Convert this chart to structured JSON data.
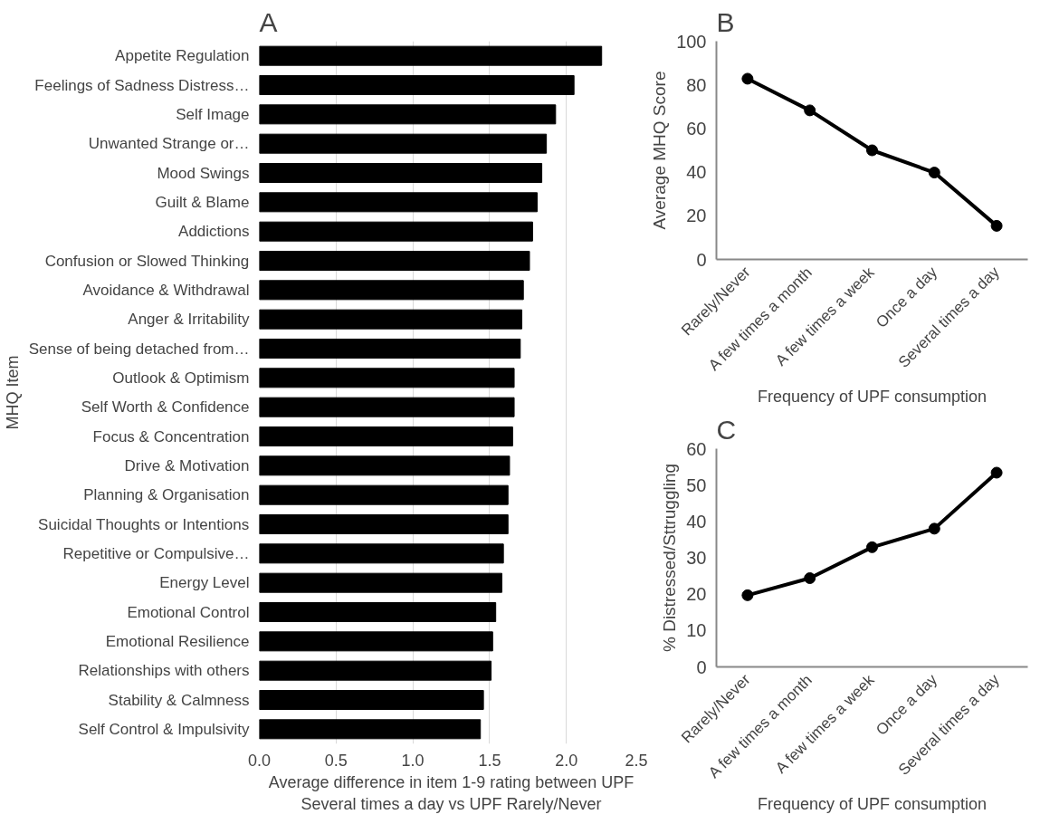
{
  "chart_data": [
    {
      "type": "bar",
      "title": "A",
      "orientation": "horizontal",
      "ylabel": "MHQ Item",
      "xlabel": "Average difference in item 1-9 rating between UPF\nSeveral times a day vs UPF Rarely/Never",
      "categories": [
        "Appetite Regulation",
        "Feelings of Sadness Distress…",
        "Self Image",
        "Unwanted Strange or…",
        "Mood Swings",
        "Guilt & Blame",
        "Addictions",
        "Confusion or Slowed Thinking",
        "Avoidance & Withdrawal",
        "Anger & Irritability",
        "Sense of being detached from…",
        "Outlook & Optimism",
        "Self Worth & Confidence",
        "Focus & Concentration",
        "Drive & Motivation",
        "Planning & Organisation",
        "Suicidal Thoughts or Intentions",
        "Repetitive or Compulsive…",
        "Energy Level",
        "Emotional Control",
        "Emotional Resilience",
        "Relationships with others",
        "Stability & Calmness",
        "Self Control & Impulsivity"
      ],
      "values": [
        2.23,
        2.05,
        1.93,
        1.87,
        1.84,
        1.81,
        1.78,
        1.76,
        1.72,
        1.71,
        1.7,
        1.66,
        1.66,
        1.65,
        1.63,
        1.62,
        1.62,
        1.59,
        1.58,
        1.54,
        1.52,
        1.51,
        1.46,
        1.44
      ],
      "color": "#000000",
      "xlim": [
        0,
        2.5
      ],
      "xticks": [
        {
          "value": 0,
          "label": "0.0"
        },
        0.5,
        {
          "value": 1,
          "label": "1.0"
        },
        1.5,
        {
          "value": 2,
          "label": "2.0"
        },
        2.5
      ],
      "grid": "x"
    },
    {
      "type": "line",
      "title": "B",
      "ylabel": "Average MHQ Score",
      "xlabel": "Frequency of UPF consumption",
      "categories": [
        "Rarely/Never",
        "A few times a month",
        "A few times a week",
        "Once a day",
        "Several times a day"
      ],
      "values": [
        82.8,
        68.3,
        50.0,
        39.8,
        15.4
      ],
      "color": "#000000",
      "marker": "circle",
      "line_style": "solid",
      "ylim": [
        0,
        100
      ],
      "yticks": [
        0,
        20,
        40,
        60,
        80,
        100
      ]
    },
    {
      "type": "line",
      "title": "C",
      "ylabel": "% Distressed/Sttruggling",
      "xlabel": "Frequency of UPF consumption",
      "categories": [
        "Rarely/Never",
        "A few times a month",
        "A few times a week",
        "Once a day",
        "Several times a day"
      ],
      "values": [
        19.7,
        24.4,
        32.9,
        38.0,
        53.4
      ],
      "color": "#000000",
      "marker": "circle",
      "line_style": "solid",
      "ylim": [
        0,
        60
      ],
      "yticks": [
        0,
        10,
        20,
        30,
        40,
        50,
        60
      ]
    }
  ]
}
